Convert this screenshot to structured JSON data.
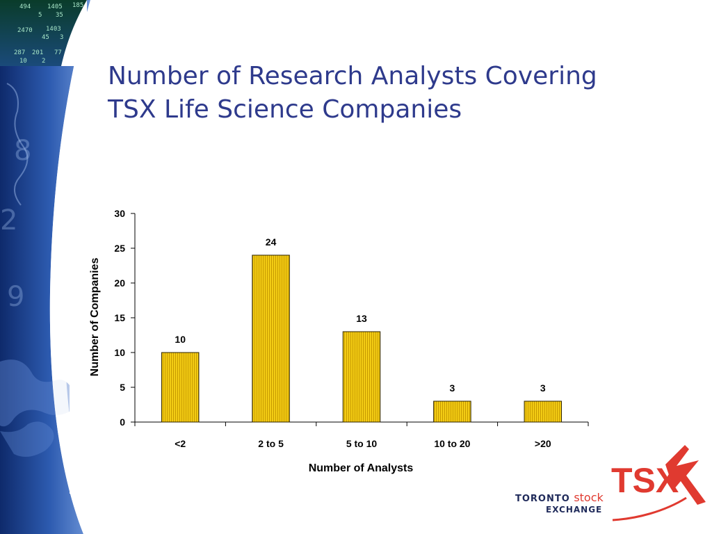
{
  "slide": {
    "title_line1": "Number of Research Analysts Covering",
    "title_line2": "TSX Life Science Companies"
  },
  "colors": {
    "title": "#2E3A8C",
    "bar_fill": "#F2C80F",
    "bar_stroke": "#2B2200",
    "logo_red": "#E03A30",
    "logo_navy": "#1F2A5A"
  },
  "logo": {
    "line1_word1": "TORONTO",
    "line1_word2": "stock",
    "line2": "EXCHANGE",
    "mark_text": "TSX"
  },
  "background_art": {
    "ticker_numbers": [
      "494",
      "1405",
      "185",
      "5",
      "35",
      "2470",
      "1403",
      "45",
      "3",
      "287",
      "201",
      "77",
      "10",
      "2"
    ],
    "icon": "world-map-and-stock-ticker-background"
  },
  "chart_data": {
    "type": "bar",
    "categories": [
      "<2",
      "2 to 5",
      "5 to 10",
      "10 to 20",
      ">20"
    ],
    "values": [
      10,
      24,
      13,
      3,
      3
    ],
    "title": "",
    "xlabel": "Number of Analysts",
    "ylabel": "Number of Companies",
    "ylim": [
      0,
      30
    ],
    "yticks": [
      0,
      5,
      10,
      15,
      20,
      25,
      30
    ],
    "grid": false,
    "legend": "none",
    "data_labels": true
  }
}
